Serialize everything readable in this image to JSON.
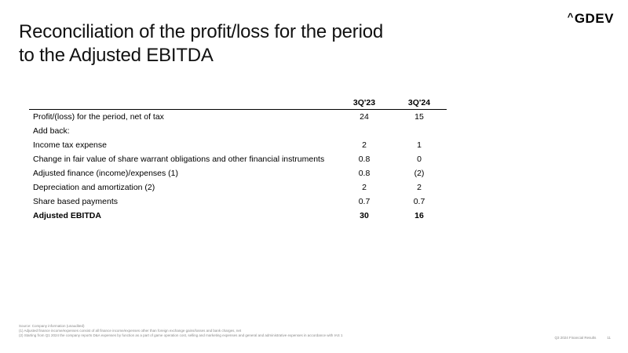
{
  "slide": {
    "title_lines": [
      "Reconciliation of the profit/loss for the period",
      "to the Adjusted EBITDA"
    ],
    "logo": {
      "mark": "^",
      "text": "GDEV"
    }
  },
  "table": {
    "columns": [
      "3Q'23",
      "3Q'24"
    ],
    "rows": [
      {
        "label": "Profit/(loss) for the period, net of tax",
        "values": [
          "24",
          "15"
        ],
        "bold": false
      },
      {
        "label": "Add back:",
        "values": [
          "",
          ""
        ],
        "bold": false
      },
      {
        "label": "Income tax expense",
        "values": [
          "2",
          "1"
        ],
        "bold": false
      },
      {
        "label": "Change in fair value of share warrant obligations and other financial instruments",
        "values": [
          "0.8",
          "0"
        ],
        "bold": false
      },
      {
        "label": "Adjusted finance (income)/expenses (1)",
        "values": [
          "0.8",
          "(2)"
        ],
        "bold": false
      },
      {
        "label": "Depreciation and amortization (2)",
        "values": [
          "2",
          "2"
        ],
        "bold": false
      },
      {
        "label": "Share based payments",
        "values": [
          "0.7",
          "0.7"
        ],
        "bold": false
      },
      {
        "label": "Adjusted EBITDA",
        "values": [
          "30",
          "16"
        ],
        "bold": true
      }
    ]
  },
  "footnotes": [
    "Source: Company information (unaudited)",
    "(1) Adjusted finance income/expenses consist of all finance income/expenses other than foreign exchange gains/losses and bank charges, net",
    "(2) Starting from Q1 2024 the company reports D&A expenses by function as a part of game operation cost, selling and marketing expenses and general and administrative expenses in accordance with IAS 1"
  ],
  "footer": {
    "report": "Q3 2024 Financial Results",
    "page": "11"
  }
}
